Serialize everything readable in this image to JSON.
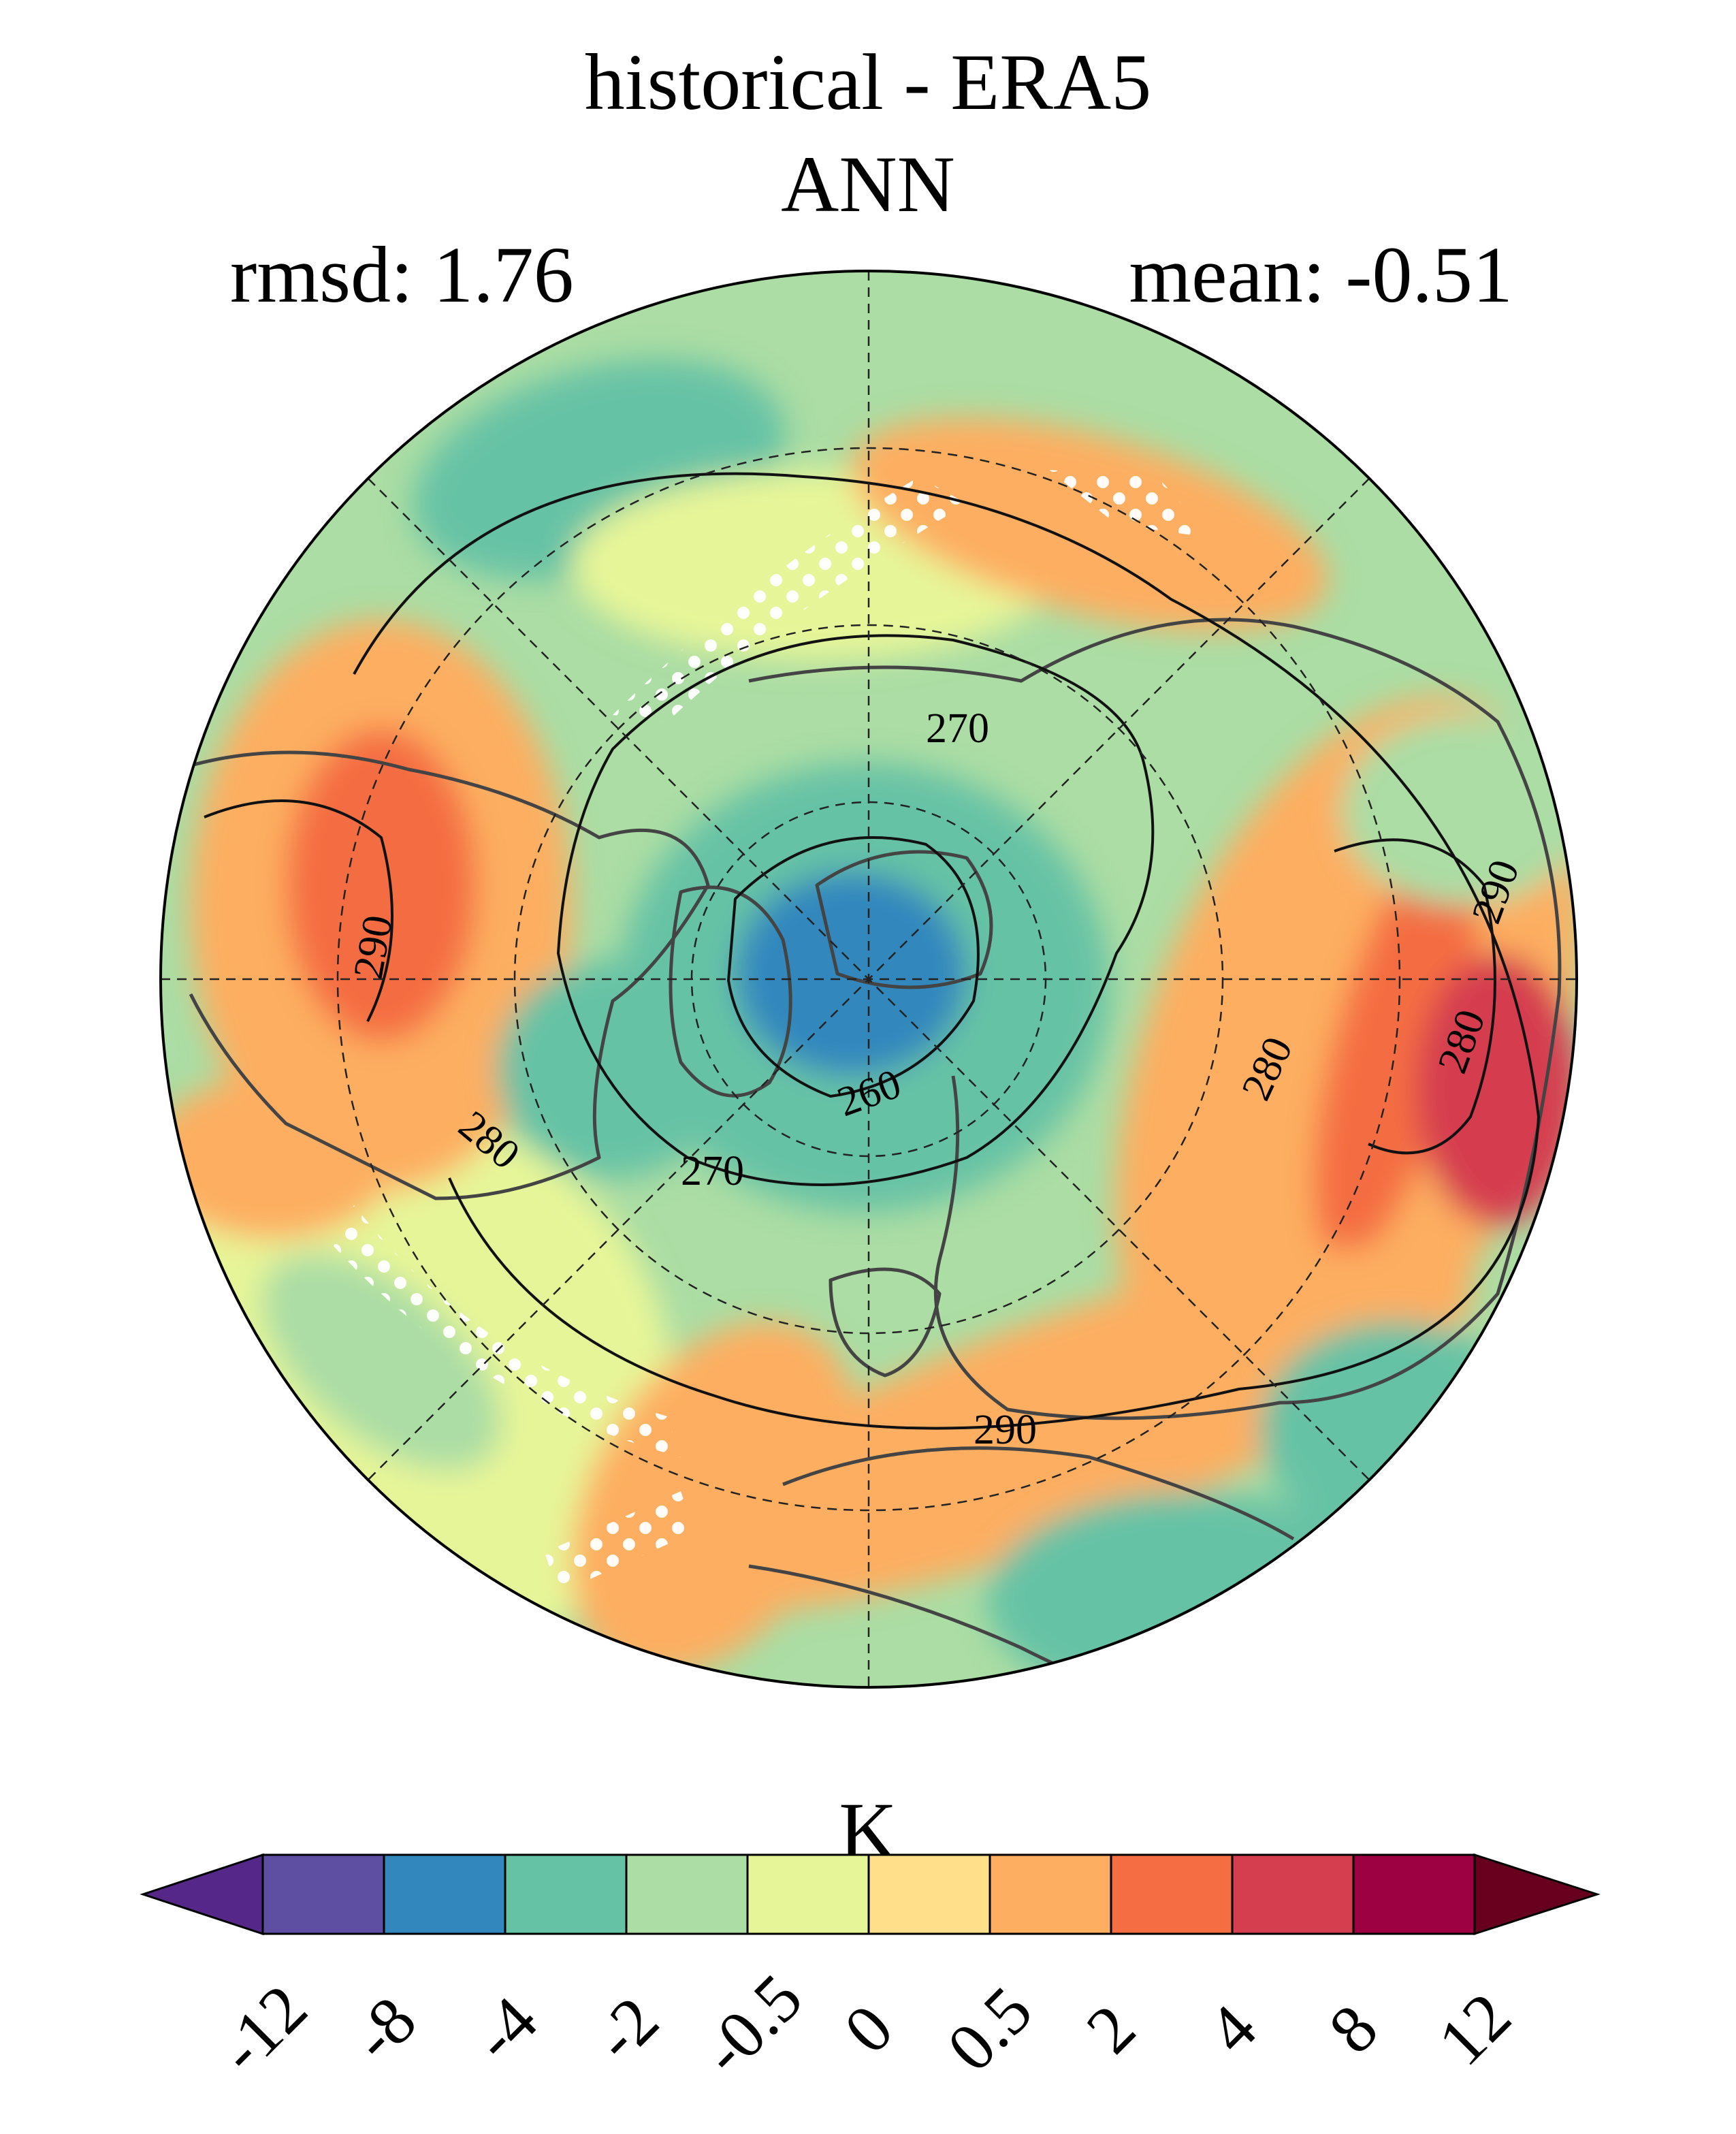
{
  "title": "historical - ERA5",
  "season": "ANN",
  "rmsd_label": "rmsd: 1.76",
  "mean_label": "mean: -0.51",
  "units": "K",
  "colorbar": {
    "levels": [
      "-12",
      "-8",
      "-4",
      "-2",
      "-0.5",
      "0",
      "0.5",
      "2",
      "4",
      "8",
      "12"
    ],
    "colors": [
      "#542788",
      "#5e4fa2",
      "#3288bd",
      "#66c2a5",
      "#abdda4",
      "#e6f598",
      "#fee08b",
      "#fdae61",
      "#f46d43",
      "#d53e4f",
      "#9e0142",
      "#67001f"
    ]
  },
  "contour_labels": [
    "290",
    "280",
    "270",
    "260",
    "270",
    "280",
    "290",
    "280",
    "290"
  ],
  "colors": {
    "ocean_base": "#abdda4",
    "coastline": "#444444",
    "contour": "#111111",
    "stipple": "#ffffff"
  }
}
